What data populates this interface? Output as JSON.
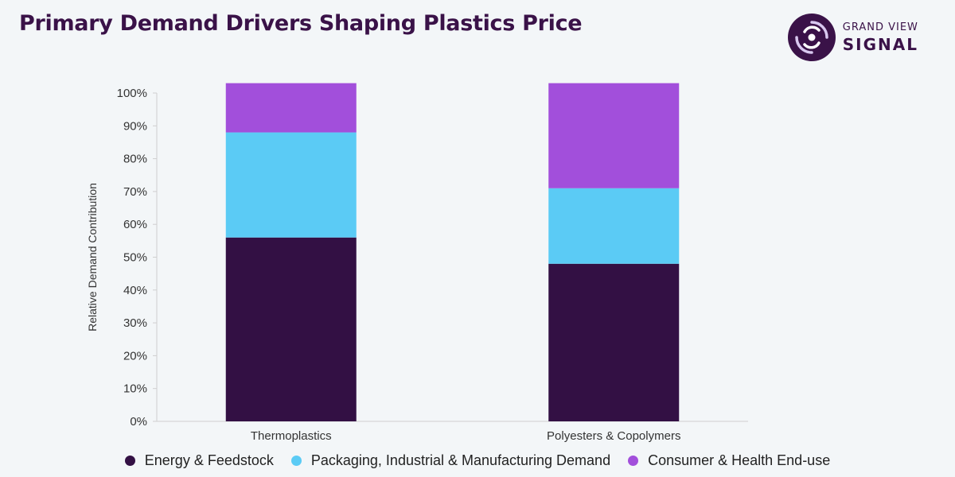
{
  "title": "Primary Demand Drivers Shaping Plastics Price",
  "logo": {
    "line1": "GRAND VIEW",
    "line2": "SIGNAL",
    "icon": "signal-swirl-icon"
  },
  "colors": {
    "title": "#3a1248",
    "energy": "#331044",
    "packaging": "#5bcbf5",
    "consumer": "#a24fdb",
    "axis": "#cfcfcf",
    "tick_text": "#333333"
  },
  "chart_data": {
    "type": "bar",
    "stacked": true,
    "title": "Primary Demand Drivers Shaping Plastics Price",
    "xlabel": "",
    "ylabel": "Relative Demand Contribution",
    "ylim": [
      0,
      100
    ],
    "yticks": [
      "0%",
      "10%",
      "20%",
      "30%",
      "40%",
      "50%",
      "60%",
      "70%",
      "80%",
      "90%",
      "100%"
    ],
    "categories": [
      "Thermoplastics",
      "Polyesters & Copolymers"
    ],
    "series": [
      {
        "name": "Energy & Feedstock",
        "values": [
          56,
          48
        ],
        "color": "#331044"
      },
      {
        "name": "Packaging, Industrial & Manufacturing Demand",
        "values": [
          32,
          23
        ],
        "color": "#5bcbf5"
      },
      {
        "name": "Consumer & Health End-use",
        "values": [
          15,
          32
        ],
        "color": "#a24fdb"
      }
    ],
    "grid": false,
    "legend": "bottom"
  }
}
